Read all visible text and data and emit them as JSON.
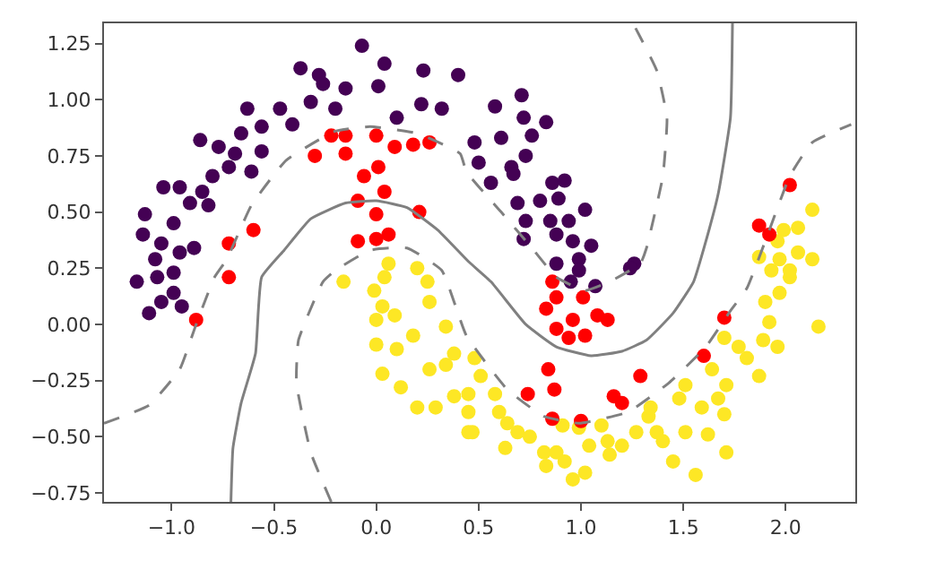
{
  "chart_data": {
    "type": "scatter",
    "xlim": [
      -1.33,
      2.34
    ],
    "ylim": [
      -0.79,
      1.34
    ],
    "xticks": [
      {
        "value": -1.0,
        "label": "−1.0"
      },
      {
        "value": -0.5,
        "label": "−0.5"
      },
      {
        "value": 0.0,
        "label": "0.0"
      },
      {
        "value": 0.5,
        "label": "0.5"
      },
      {
        "value": 1.0,
        "label": "1.0"
      },
      {
        "value": 1.5,
        "label": "1.5"
      },
      {
        "value": 2.0,
        "label": "2.0"
      }
    ],
    "yticks": [
      {
        "value": -0.75,
        "label": "−0.75"
      },
      {
        "value": -0.5,
        "label": "−0.50"
      },
      {
        "value": -0.25,
        "label": "−0.25"
      },
      {
        "value": 0.0,
        "label": "0.00"
      },
      {
        "value": 0.25,
        "label": "0.25"
      },
      {
        "value": 0.5,
        "label": "0.50"
      },
      {
        "value": 0.75,
        "label": "0.75"
      },
      {
        "value": 1.0,
        "label": "1.00"
      },
      {
        "value": 1.25,
        "label": "1.25"
      }
    ],
    "marker": "circle",
    "series": [
      {
        "color": "#440154",
        "x": [
          -0.07,
          -0.37,
          -0.28,
          -0.26,
          0.04,
          0.23,
          0.4,
          0.01,
          -0.15,
          -0.32,
          -0.47,
          -0.63,
          -0.41,
          -0.56,
          -0.66,
          -0.86,
          -0.77,
          -0.69,
          -0.56,
          -0.61,
          -0.72,
          -0.8,
          -1.04,
          -0.96,
          -0.85,
          -0.91,
          -0.82,
          -0.99,
          -1.13,
          -1.14,
          -1.05,
          -0.96,
          -0.89,
          -1.08,
          -0.99,
          -1.17,
          0.22,
          0.32,
          0.48,
          0.5,
          0.1,
          -0.2,
          -1.07,
          -0.99,
          -1.05,
          -1.11,
          -0.95,
          0.58,
          0.71,
          0.72,
          0.83,
          0.61,
          0.76,
          0.73,
          0.66,
          0.56,
          0.67,
          0.86,
          0.92,
          0.8,
          0.89,
          1.02,
          0.69,
          0.73,
          0.85,
          0.94,
          0.88,
          0.72,
          0.96,
          1.05,
          0.99,
          0.88,
          1.26,
          0.99,
          0.95,
          1.07,
          1.24
        ],
        "values": [
          1.24,
          1.14,
          1.11,
          1.07,
          1.16,
          1.13,
          1.11,
          1.06,
          1.05,
          0.99,
          0.96,
          0.96,
          0.89,
          0.88,
          0.85,
          0.82,
          0.79,
          0.76,
          0.77,
          0.68,
          0.7,
          0.66,
          0.61,
          0.61,
          0.59,
          0.54,
          0.53,
          0.45,
          0.49,
          0.4,
          0.36,
          0.32,
          0.34,
          0.29,
          0.23,
          0.19,
          0.98,
          0.96,
          0.81,
          0.72,
          0.92,
          0.96,
          0.21,
          0.14,
          0.1,
          0.05,
          0.08,
          0.97,
          1.02,
          0.92,
          0.9,
          0.83,
          0.84,
          0.75,
          0.7,
          0.63,
          0.67,
          0.63,
          0.64,
          0.55,
          0.56,
          0.51,
          0.54,
          0.46,
          0.46,
          0.46,
          0.4,
          0.38,
          0.37,
          0.35,
          0.29,
          0.27,
          0.27,
          0.24,
          0.19,
          0.17,
          0.25
        ]
      },
      {
        "color": "#fde725",
        "x": [
          -0.16,
          -0.01,
          0.04,
          0.0,
          0.09,
          0.26,
          0.34,
          0.0,
          0.1,
          0.18,
          0.03,
          0.12,
          0.26,
          0.34,
          0.38,
          0.2,
          0.29,
          0.38,
          0.45,
          0.45,
          0.03,
          0.06,
          0.2,
          0.25,
          0.48,
          0.51,
          0.45,
          0.58,
          0.47,
          0.6,
          0.64,
          0.69,
          0.63,
          0.75,
          0.82,
          0.88,
          0.83,
          0.92,
          0.96,
          1.02,
          1.04,
          1.13,
          1.14,
          1.2,
          0.91,
          0.99,
          1.1,
          1.27,
          1.33,
          1.37,
          1.4,
          1.45,
          1.51,
          1.62,
          1.71,
          1.56,
          1.48,
          1.51,
          1.59,
          1.67,
          1.7,
          1.64,
          1.71,
          1.77,
          1.81,
          1.87,
          1.89,
          1.92,
          1.96,
          1.9,
          1.97,
          2.02,
          2.16,
          1.7,
          1.34,
          2.13,
          2.06,
          1.99,
          1.96,
          2.06,
          2.13,
          1.87,
          1.97,
          2.02,
          1.93
        ],
        "values": [
          0.19,
          0.15,
          0.21,
          0.02,
          0.04,
          0.1,
          -0.01,
          -0.09,
          -0.11,
          -0.05,
          -0.22,
          -0.28,
          -0.2,
          -0.18,
          -0.13,
          -0.37,
          -0.37,
          -0.32,
          -0.39,
          -0.48,
          0.08,
          0.27,
          0.25,
          0.19,
          -0.15,
          -0.23,
          -0.31,
          -0.31,
          -0.48,
          -0.39,
          -0.44,
          -0.48,
          -0.55,
          -0.5,
          -0.57,
          -0.57,
          -0.63,
          -0.61,
          -0.69,
          -0.66,
          -0.54,
          -0.52,
          -0.58,
          -0.54,
          -0.45,
          -0.46,
          -0.45,
          -0.48,
          -0.41,
          -0.48,
          -0.52,
          -0.61,
          -0.48,
          -0.49,
          -0.57,
          -0.67,
          -0.33,
          -0.27,
          -0.37,
          -0.33,
          -0.4,
          -0.2,
          -0.27,
          -0.1,
          -0.15,
          -0.23,
          -0.07,
          0.01,
          -0.1,
          0.1,
          0.14,
          0.21,
          -0.01,
          -0.06,
          -0.37,
          0.51,
          0.43,
          0.42,
          0.37,
          0.32,
          0.29,
          0.3,
          0.29,
          0.24,
          0.24
        ]
      },
      {
        "color": "#ff0000",
        "x": [
          -0.3,
          -0.22,
          -0.15,
          -0.15,
          0.0,
          -0.06,
          0.01,
          0.04,
          -0.09,
          0.0,
          0.21,
          0.09,
          0.18,
          0.26,
          -0.09,
          0.0,
          0.06,
          -0.6,
          -0.72,
          -0.72,
          -0.88,
          2.02,
          1.87,
          1.92,
          0.86,
          0.88,
          0.83,
          1.01,
          0.96,
          1.08,
          1.13,
          0.88,
          0.94,
          1.02,
          1.7,
          1.6,
          0.84,
          1.29,
          0.74,
          0.87,
          1.16,
          1.2,
          0.86,
          1.0
        ],
        "values": [
          0.75,
          0.84,
          0.84,
          0.76,
          0.84,
          0.66,
          0.7,
          0.59,
          0.55,
          0.49,
          0.5,
          0.79,
          0.8,
          0.81,
          0.37,
          0.38,
          0.4,
          0.42,
          0.36,
          0.21,
          0.02,
          0.62,
          0.44,
          0.4,
          0.19,
          0.12,
          0.07,
          0.12,
          0.02,
          0.04,
          0.02,
          -0.02,
          -0.06,
          -0.05,
          0.03,
          -0.14,
          -0.2,
          -0.23,
          -0.31,
          -0.29,
          -0.32,
          -0.35,
          -0.42,
          -0.43
        ]
      },
      {
        "type": "line",
        "marker": "none",
        "color": "#808080",
        "line_style": "solid",
        "x": [
          -0.71,
          -0.7,
          -0.66,
          -0.59,
          -0.56,
          -0.45,
          -0.32,
          -0.15,
          0.0,
          0.15,
          0.3,
          0.45,
          0.56,
          0.73,
          0.88,
          1.05,
          1.2,
          1.32,
          1.45,
          1.55,
          1.61,
          1.67,
          1.73,
          1.74
        ],
        "values": [
          -0.79,
          -0.55,
          -0.35,
          -0.13,
          0.21,
          0.33,
          0.47,
          0.54,
          0.55,
          0.52,
          0.42,
          0.28,
          0.19,
          0.0,
          -0.1,
          -0.14,
          -0.12,
          -0.07,
          0.05,
          0.19,
          0.37,
          0.58,
          0.92,
          1.34
        ]
      },
      {
        "type": "line",
        "marker": "none",
        "color": "#808080",
        "line_style": "dashed",
        "x": [
          -1.33,
          -1.11,
          -0.96,
          -0.88,
          -0.79,
          -0.73,
          -0.61,
          -0.44,
          -0.2,
          -0.03,
          0.2,
          0.41,
          0.44,
          0.61,
          0.76,
          0.88,
          1.02,
          1.14,
          1.29,
          1.32,
          1.4,
          1.42,
          1.37,
          1.26
        ],
        "values": [
          -0.44,
          -0.36,
          -0.2,
          0.0,
          0.21,
          0.29,
          0.53,
          0.73,
          0.86,
          0.88,
          0.85,
          0.76,
          0.68,
          0.5,
          0.34,
          0.21,
          0.15,
          0.19,
          0.27,
          0.34,
          0.66,
          0.92,
          1.13,
          1.33
        ]
      },
      {
        "type": "line",
        "marker": "none",
        "color": "#808080",
        "line_style": "dashed",
        "x": [
          -0.22,
          -0.32,
          -0.39,
          -0.38,
          -0.26,
          -0.2,
          -0.03,
          0.15,
          0.32,
          0.44,
          0.64,
          0.82,
          0.99,
          1.23,
          1.43,
          1.61,
          1.73,
          1.81,
          1.9,
          2.02,
          2.13,
          2.32
        ],
        "values": [
          -0.79,
          -0.57,
          -0.26,
          -0.07,
          0.19,
          0.24,
          0.33,
          0.34,
          0.24,
          -0.05,
          -0.29,
          -0.41,
          -0.44,
          -0.39,
          -0.26,
          -0.1,
          0.06,
          0.16,
          0.37,
          0.66,
          0.81,
          0.89
        ]
      }
    ]
  }
}
